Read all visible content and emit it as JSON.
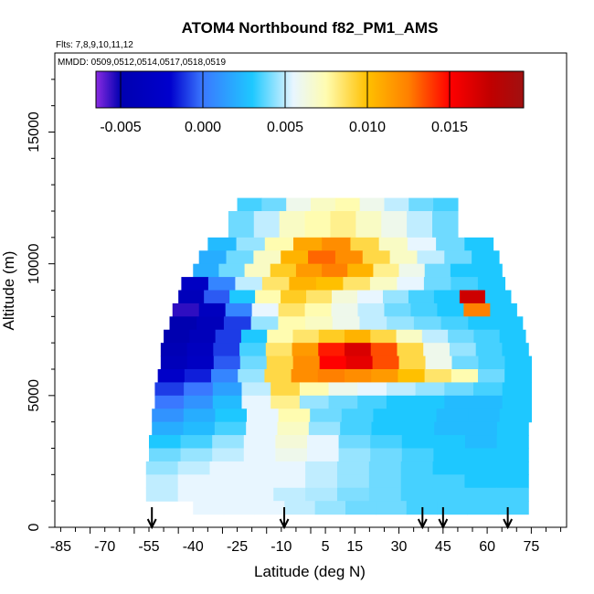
{
  "chart_data": {
    "type": "heatmap",
    "title": "ATOM4 Northbound f82_PM1_AMS",
    "subtitle": "Flts: 7,8,9,10,11,12",
    "note": "MMDD: 0509,0512,0514,0517,0518,0519",
    "xlabel": "Latitude (deg N)",
    "ylabel": "Altitude (m)",
    "xlim": [
      -87,
      87
    ],
    "ylim": [
      0,
      18000
    ],
    "xticks": [
      "-85",
      "-70",
      "-55",
      "-40",
      "-25",
      "-10",
      "5",
      "15",
      "30",
      "45",
      "60",
      "75"
    ],
    "xtick_values": [
      -85,
      -70,
      -55,
      -40,
      -25,
      -10,
      5,
      15,
      30,
      45,
      60,
      75
    ],
    "yticks": [
      "0",
      "5000",
      "10000",
      "15000"
    ],
    "ytick_values": [
      0,
      5000,
      10000,
      15000
    ],
    "colorbar": {
      "range": [
        -0.0065,
        0.0195
      ],
      "ticks": [
        "-0.005",
        "0.000",
        "0.005",
        "0.010",
        "0.015"
      ],
      "tick_values": [
        -0.005,
        0.0,
        0.005,
        0.01,
        0.015
      ],
      "stops": [
        {
          "v": -0.0065,
          "color": "#8a2be2"
        },
        {
          "v": -0.005,
          "color": "#0000b0"
        },
        {
          "v": -0.002,
          "color": "#0000cd"
        },
        {
          "v": 0.0,
          "color": "#3a78ff"
        },
        {
          "v": 0.003,
          "color": "#1ec8ff"
        },
        {
          "v": 0.0055,
          "color": "#e8f6ff"
        },
        {
          "v": 0.0075,
          "color": "#fffcb0"
        },
        {
          "v": 0.01,
          "color": "#ffc000"
        },
        {
          "v": 0.0125,
          "color": "#ff8000"
        },
        {
          "v": 0.015,
          "color": "#ff0000"
        },
        {
          "v": 0.0175,
          "color": "#c00000"
        },
        {
          "v": 0.0195,
          "color": "#a01010"
        }
      ]
    },
    "arrows_latitude": [
      -54,
      -9,
      38,
      45,
      67
    ],
    "rows": [
      {
        "alt": [
          12000,
          12500
        ],
        "lat": [
          -25,
          50
        ],
        "v": [
          0.0035,
          0.004,
          0.006,
          0.007,
          0.0075,
          0.006,
          0.005,
          0.004,
          0.0035
        ]
      },
      {
        "alt": [
          11000,
          12000
        ],
        "lat": [
          -28,
          50
        ],
        "v": [
          0.004,
          0.005,
          0.007,
          0.0075,
          0.008,
          0.007,
          0.006,
          0.005,
          0.004
        ]
      },
      {
        "alt": [
          10500,
          11000
        ],
        "lat": [
          -35,
          62
        ],
        "v": [
          0.0025,
          0.0045,
          0.0075,
          0.011,
          0.012,
          0.009,
          0.007,
          0.0055,
          0.004,
          0.003
        ]
      },
      {
        "alt": [
          10000,
          10500
        ],
        "lat": [
          -38,
          64
        ],
        "v": [
          0.002,
          0.004,
          0.007,
          0.0105,
          0.013,
          0.012,
          0.009,
          0.007,
          0.005,
          0.004,
          0.003
        ]
      },
      {
        "alt": [
          9500,
          10000
        ],
        "lat": [
          -40,
          65
        ],
        "v": [
          0.002,
          0.004,
          0.007,
          0.0095,
          0.0115,
          0.0125,
          0.0105,
          0.008,
          0.006,
          0.004,
          0.003,
          0.003
        ]
      },
      {
        "alt": [
          9000,
          9500
        ],
        "lat": [
          -44,
          66
        ],
        "v": [
          -0.003,
          0.0005,
          0.005,
          0.0085,
          0.0105,
          0.01,
          0.0085,
          0.007,
          0.0055,
          0.004,
          0.0035,
          0.003
        ]
      },
      {
        "alt": [
          8500,
          9000
        ],
        "lat": [
          -45,
          68
        ],
        "v": [
          -0.004,
          -0.0005,
          0.003,
          0.0075,
          0.0095,
          0.0085,
          0.0065,
          0.0055,
          0.0045,
          0.0035,
          0.003,
          0.017,
          0.003
        ]
      },
      {
        "alt": [
          8000,
          8500
        ],
        "lat": [
          -47,
          70
        ],
        "v": [
          -0.0055,
          -0.0035,
          0.0005,
          0.0055,
          0.0085,
          0.0075,
          0.006,
          0.005,
          0.004,
          0.0035,
          0.003,
          0.0125,
          0.003
        ]
      },
      {
        "alt": [
          7500,
          8000
        ],
        "lat": [
          -48,
          72
        ],
        "v": [
          -0.005,
          -0.004,
          -0.001,
          0.0045,
          0.0075,
          0.007,
          0.006,
          0.005,
          0.0045,
          0.004,
          0.0035,
          0.003,
          0.003
        ]
      },
      {
        "alt": [
          7000,
          7500
        ],
        "lat": [
          -50,
          73
        ],
        "v": [
          -0.005,
          -0.004,
          -0.001,
          0.003,
          0.0075,
          0.0085,
          0.0095,
          0.0105,
          0.009,
          0.007,
          0.005,
          0.004,
          0.0035,
          0.003
        ]
      },
      {
        "alt": [
          6500,
          7000
        ],
        "lat": [
          -51,
          74
        ],
        "v": [
          -0.0045,
          -0.0035,
          -0.001,
          0.0035,
          0.0085,
          0.0115,
          0.0145,
          0.0165,
          0.0135,
          0.009,
          0.006,
          0.0045,
          0.0035,
          0.003
        ]
      },
      {
        "alt": [
          6000,
          6500
        ],
        "lat": [
          -51,
          75
        ],
        "v": [
          -0.004,
          -0.003,
          -0.0005,
          0.004,
          0.009,
          0.012,
          0.015,
          0.016,
          0.0135,
          0.009,
          0.006,
          0.004,
          0.0035,
          0.003
        ]
      },
      {
        "alt": [
          5500,
          6000
        ],
        "lat": [
          -52,
          75
        ],
        "v": [
          -0.0025,
          -0.0015,
          0.0005,
          0.0045,
          0.009,
          0.012,
          0.0125,
          0.012,
          0.0115,
          0.01,
          0.0085,
          0.0075,
          0.004,
          0.003
        ]
      },
      {
        "alt": [
          5000,
          5500
        ],
        "lat": [
          -53,
          75
        ],
        "v": [
          -0.001,
          0.0,
          0.0015,
          0.005,
          0.009,
          0.0075,
          0.006,
          0.0055,
          0.005,
          0.0045,
          0.004,
          0.0035,
          0.003
        ]
      },
      {
        "alt": [
          4500,
          5000
        ],
        "lat": [
          -53,
          75
        ],
        "v": [
          0.0,
          0.001,
          0.0025,
          0.0055,
          0.008,
          0.0045,
          0.004,
          0.0035,
          0.003,
          0.003,
          0.0025,
          0.0025,
          0.003
        ]
      },
      {
        "alt": [
          4000,
          4500
        ],
        "lat": [
          -54,
          75
        ],
        "v": [
          0.001,
          0.002,
          0.003,
          0.0055,
          0.0075,
          0.004,
          0.0035,
          0.003,
          0.003,
          0.0025,
          0.0025,
          0.003
        ]
      },
      {
        "alt": [
          3500,
          4000
        ],
        "lat": [
          -54,
          74
        ],
        "v": [
          0.002,
          0.0025,
          0.0035,
          0.0055,
          0.007,
          0.0045,
          0.0035,
          0.003,
          0.003,
          0.0025,
          0.0025,
          0.003
        ]
      },
      {
        "alt": [
          3000,
          3500
        ],
        "lat": [
          -55,
          74
        ],
        "v": [
          0.003,
          0.0035,
          0.0045,
          0.0055,
          0.0065,
          0.0055,
          0.004,
          0.0035,
          0.003,
          0.003,
          0.0025,
          0.003
        ]
      },
      {
        "alt": [
          2500,
          3000
        ],
        "lat": [
          -55,
          74
        ],
        "v": [
          0.004,
          0.0045,
          0.005,
          0.0055,
          0.006,
          0.0055,
          0.0045,
          0.004,
          0.0035,
          0.003,
          0.003,
          0.003
        ]
      },
      {
        "alt": [
          2000,
          2500
        ],
        "lat": [
          -56,
          74
        ],
        "v": [
          0.0045,
          0.005,
          0.0055,
          0.0055,
          0.0055,
          0.005,
          0.0045,
          0.004,
          0.0035,
          0.003,
          0.003,
          0.003
        ]
      },
      {
        "alt": [
          1500,
          2000
        ],
        "lat": [
          -56,
          74
        ],
        "v": [
          0.005,
          0.0055,
          0.0055,
          0.0055,
          0.0055,
          0.005,
          0.0045,
          0.004,
          0.0035,
          0.0035,
          0.003,
          0.003
        ]
      },
      {
        "alt": [
          1000,
          1500
        ],
        "lat": [
          -56,
          74
        ],
        "v": [
          0.005,
          0.0055,
          0.0055,
          0.0055,
          0.005,
          0.0048,
          0.0042,
          0.004,
          0.0035,
          0.0035,
          0.0035,
          0.0035
        ]
      },
      {
        "alt": [
          500,
          1000
        ],
        "lat": [
          -40,
          74
        ],
        "v": [
          0.0055,
          0.0055,
          0.0055,
          0.005,
          0.0045,
          0.004,
          0.004,
          0.0035,
          0.0035,
          0.0035,
          0.0035
        ]
      }
    ]
  }
}
